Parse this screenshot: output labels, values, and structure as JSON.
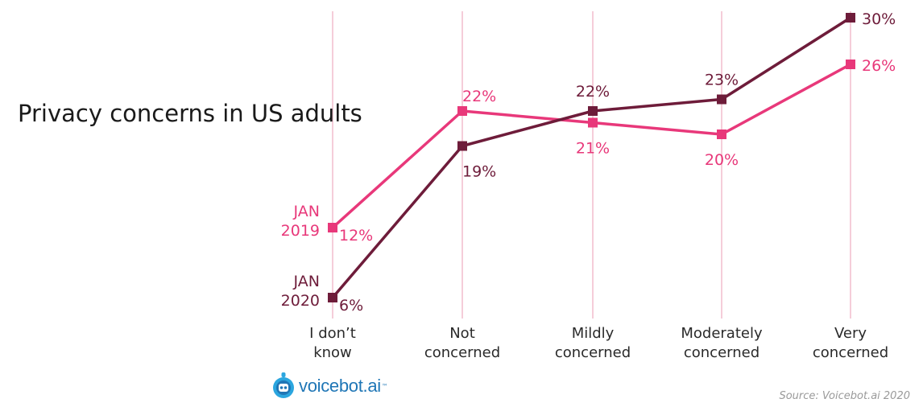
{
  "title": "Privacy concerns in US adults",
  "source": "Source: Voicebot.ai 2020",
  "logo": {
    "text": "voicebot.ai",
    "tm": "™",
    "icon": "voicebot-robot-icon"
  },
  "colors": {
    "jan2019": "#e8387a",
    "jan2020": "#6e1c3a",
    "grid": "#f5cdd9",
    "axis_text": "#2a2a2a"
  },
  "chart_data": {
    "type": "line",
    "title": "Privacy concerns in US adults",
    "categories": [
      [
        "I don’t",
        "know"
      ],
      [
        "Not",
        "concerned"
      ],
      [
        "Mildly",
        "concerned"
      ],
      [
        "Moderately",
        "concerned"
      ],
      [
        "Very",
        "concerned"
      ]
    ],
    "series": [
      {
        "name": "JAN 2019",
        "name_lines": [
          "JAN",
          "2019"
        ],
        "color": "#e8387a",
        "values": [
          12,
          22,
          21,
          20,
          26
        ],
        "labels": [
          "12%",
          "22%",
          "21%",
          "20%",
          "26%"
        ]
      },
      {
        "name": "JAN 2020",
        "name_lines": [
          "JAN",
          "2020"
        ],
        "color": "#6e1c3a",
        "values": [
          6,
          19,
          22,
          23,
          30
        ],
        "labels": [
          "6%",
          "19%",
          "22%",
          "23%",
          "30%"
        ]
      }
    ],
    "unit": "%",
    "grid": "vertical",
    "legend": "inline-left"
  }
}
